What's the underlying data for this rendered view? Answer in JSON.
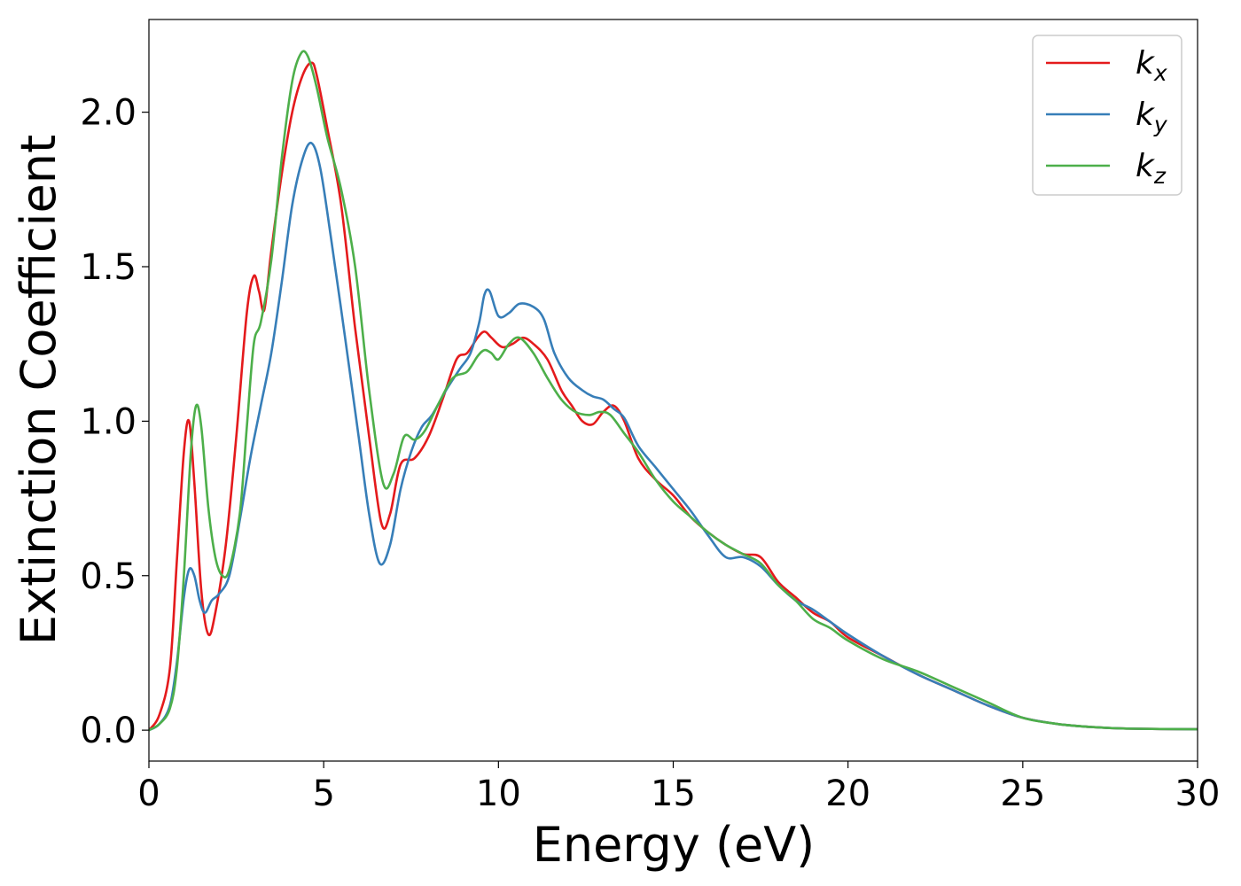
{
  "chart_data": {
    "type": "line",
    "xlabel": "Energy (eV)",
    "ylabel": "Extinction Coefficient",
    "xlim": [
      0,
      30
    ],
    "ylim": [
      -0.1,
      2.3
    ],
    "xticks": [
      0,
      5,
      10,
      15,
      20,
      25,
      30
    ],
    "xtick_labels": [
      "0",
      "5",
      "10",
      "15",
      "20",
      "25",
      "30"
    ],
    "yticks": [
      0.0,
      0.5,
      1.0,
      1.5,
      2.0
    ],
    "ytick_labels": [
      "0.0",
      "0.5",
      "1.0",
      "1.5",
      "2.0"
    ],
    "grid": false,
    "legend_position": "top-right",
    "series": [
      {
        "name": "k",
        "subscript": "x",
        "color": "#e41a1c",
        "x": [
          0,
          0.3,
          0.6,
          0.8,
          1.0,
          1.15,
          1.3,
          1.5,
          1.7,
          1.9,
          2.2,
          2.5,
          2.8,
          3.0,
          3.15,
          3.3,
          3.5,
          3.8,
          4.1,
          4.4,
          4.65,
          4.8,
          5.1,
          5.5,
          5.9,
          6.3,
          6.65,
          6.9,
          7.2,
          7.6,
          8.0,
          8.4,
          8.8,
          9.1,
          9.4,
          9.6,
          9.8,
          10.1,
          10.4,
          10.7,
          11.0,
          11.4,
          11.8,
          12.1,
          12.4,
          12.7,
          13.0,
          13.3,
          13.6,
          14.0,
          14.5,
          15.0,
          15.5,
          16.0,
          16.5,
          17.0,
          17.5,
          18.0,
          18.5,
          19.0,
          19.5,
          20.0,
          21.0,
          22.0,
          23.0,
          24.0,
          25.0,
          26.0,
          27.0,
          28.0,
          30.0
        ],
        "y": [
          0.0,
          0.05,
          0.2,
          0.55,
          0.9,
          1.0,
          0.8,
          0.45,
          0.31,
          0.38,
          0.6,
          0.95,
          1.35,
          1.47,
          1.42,
          1.36,
          1.55,
          1.8,
          2.0,
          2.12,
          2.16,
          2.12,
          1.95,
          1.7,
          1.3,
          0.95,
          0.67,
          0.7,
          0.86,
          0.88,
          0.95,
          1.07,
          1.2,
          1.22,
          1.27,
          1.29,
          1.27,
          1.24,
          1.25,
          1.27,
          1.25,
          1.2,
          1.1,
          1.05,
          1.0,
          0.99,
          1.03,
          1.05,
          1.0,
          0.88,
          0.81,
          0.76,
          0.69,
          0.64,
          0.6,
          0.57,
          0.56,
          0.48,
          0.43,
          0.38,
          0.35,
          0.3,
          0.24,
          0.18,
          0.13,
          0.08,
          0.04,
          0.02,
          0.01,
          0.005,
          0.003
        ]
      },
      {
        "name": "k",
        "subscript": "y",
        "color": "#377eb8",
        "x": [
          0,
          0.3,
          0.6,
          0.8,
          1.0,
          1.15,
          1.3,
          1.45,
          1.6,
          1.8,
          2.0,
          2.3,
          2.6,
          2.9,
          3.2,
          3.5,
          3.8,
          4.1,
          4.4,
          4.65,
          4.9,
          5.2,
          5.6,
          6.0,
          6.3,
          6.6,
          6.9,
          7.2,
          7.5,
          7.8,
          8.1,
          8.5,
          8.9,
          9.2,
          9.45,
          9.6,
          9.75,
          10.0,
          10.3,
          10.6,
          11.0,
          11.3,
          11.6,
          12.0,
          12.4,
          12.7,
          13.0,
          13.3,
          13.6,
          14.0,
          14.5,
          15.0,
          15.5,
          16.0,
          16.5,
          17.0,
          17.5,
          18.0,
          18.5,
          19.0,
          19.5,
          20.0,
          21.0,
          22.0,
          23.0,
          24.0,
          25.0,
          26.0,
          27.0,
          28.0,
          30.0
        ],
        "y": [
          0.0,
          0.02,
          0.08,
          0.22,
          0.43,
          0.52,
          0.5,
          0.42,
          0.38,
          0.42,
          0.44,
          0.5,
          0.68,
          0.88,
          1.05,
          1.22,
          1.45,
          1.7,
          1.85,
          1.9,
          1.82,
          1.6,
          1.28,
          0.95,
          0.7,
          0.54,
          0.6,
          0.78,
          0.9,
          0.98,
          1.02,
          1.1,
          1.17,
          1.22,
          1.32,
          1.41,
          1.42,
          1.34,
          1.35,
          1.38,
          1.37,
          1.33,
          1.22,
          1.14,
          1.1,
          1.08,
          1.07,
          1.04,
          1.01,
          0.92,
          0.85,
          0.78,
          0.71,
          0.63,
          0.56,
          0.56,
          0.53,
          0.47,
          0.42,
          0.39,
          0.35,
          0.31,
          0.24,
          0.18,
          0.13,
          0.08,
          0.04,
          0.02,
          0.01,
          0.005,
          0.003
        ]
      },
      {
        "name": "k",
        "subscript": "z",
        "color": "#4daf4a",
        "x": [
          0,
          0.3,
          0.6,
          0.8,
          1.0,
          1.2,
          1.35,
          1.5,
          1.7,
          1.9,
          2.1,
          2.3,
          2.6,
          2.8,
          3.0,
          3.2,
          3.5,
          3.8,
          4.1,
          4.35,
          4.55,
          4.8,
          5.1,
          5.5,
          5.9,
          6.3,
          6.7,
          7.0,
          7.3,
          7.6,
          7.9,
          8.3,
          8.7,
          9.1,
          9.4,
          9.6,
          9.8,
          10.0,
          10.3,
          10.6,
          11.0,
          11.4,
          11.8,
          12.2,
          12.6,
          12.9,
          13.2,
          13.6,
          14.0,
          14.5,
          15.0,
          15.5,
          16.0,
          16.5,
          17.0,
          17.5,
          18.0,
          18.5,
          19.0,
          19.5,
          20.0,
          21.0,
          22.0,
          23.0,
          24.0,
          25.0,
          26.0,
          27.0,
          28.0,
          30.0
        ],
        "y": [
          0.0,
          0.02,
          0.07,
          0.2,
          0.5,
          0.9,
          1.05,
          0.98,
          0.72,
          0.56,
          0.5,
          0.52,
          0.7,
          0.98,
          1.25,
          1.32,
          1.52,
          1.85,
          2.1,
          2.19,
          2.18,
          2.08,
          1.92,
          1.75,
          1.5,
          1.1,
          0.8,
          0.83,
          0.95,
          0.94,
          0.97,
          1.06,
          1.14,
          1.16,
          1.21,
          1.23,
          1.22,
          1.2,
          1.25,
          1.27,
          1.22,
          1.14,
          1.07,
          1.03,
          1.02,
          1.03,
          1.02,
          0.96,
          0.9,
          0.81,
          0.74,
          0.69,
          0.64,
          0.6,
          0.57,
          0.54,
          0.47,
          0.42,
          0.36,
          0.33,
          0.29,
          0.23,
          0.19,
          0.14,
          0.09,
          0.04,
          0.02,
          0.01,
          0.005,
          0.003
        ]
      }
    ]
  }
}
